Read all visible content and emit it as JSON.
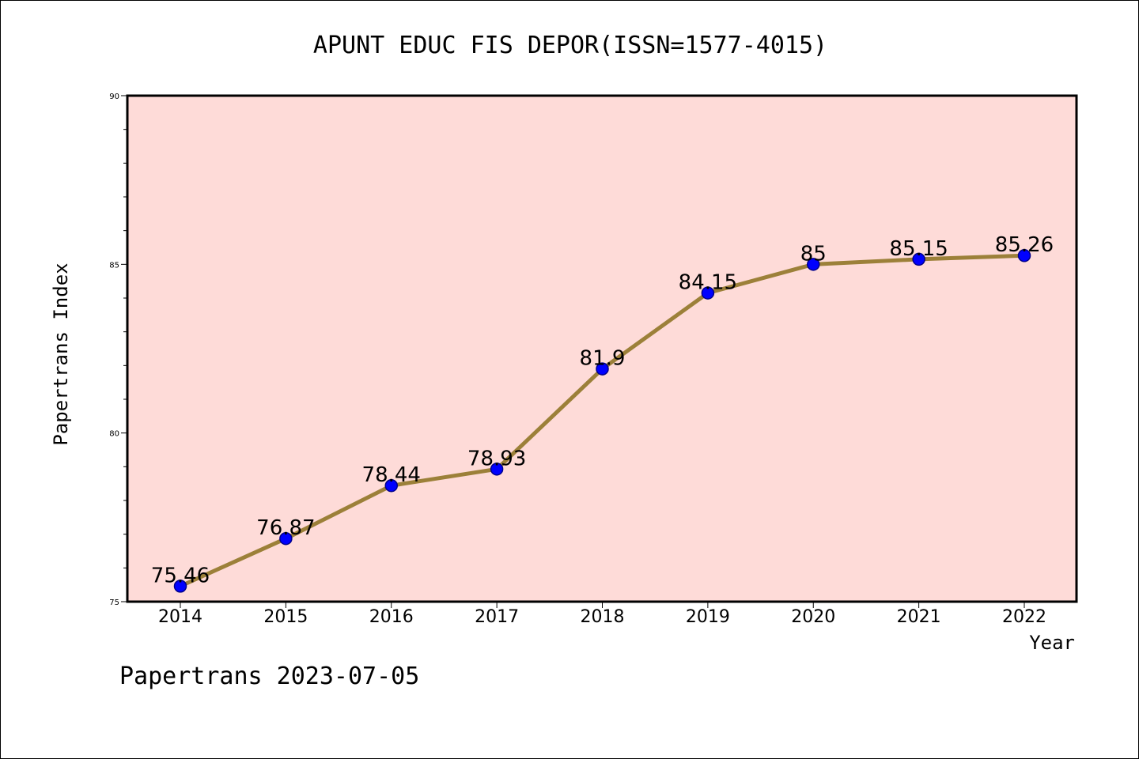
{
  "chart_data": {
    "type": "line",
    "title": "APUNT EDUC FIS DEPOR(ISSN=1577-4015)",
    "xlabel": "Year",
    "ylabel": "Papertrans Index",
    "categories": [
      "2014",
      "2015",
      "2016",
      "2017",
      "2018",
      "2019",
      "2020",
      "2021",
      "2022"
    ],
    "values": [
      75.46,
      76.87,
      78.44,
      78.93,
      81.9,
      84.15,
      85,
      85.15,
      85.26
    ],
    "data_labels": [
      "75.46",
      "76.87",
      "78.44",
      "78.93",
      "81.9",
      "84.15",
      "85",
      "85.15",
      "85.26"
    ],
    "ylim": [
      75,
      90
    ],
    "y_ticks": [
      75,
      80,
      85,
      90
    ],
    "y_tick_labels": [
      "75",
      "80",
      "85",
      "90"
    ],
    "y_minor_step": 1,
    "grid": false,
    "legend": "none",
    "footer": "Papertrans 2023-07-05",
    "colors": {
      "plot_background": "#fedbd8",
      "line": "#9c8039",
      "marker": "#0000ff",
      "marker_edge": "#00008b"
    }
  }
}
